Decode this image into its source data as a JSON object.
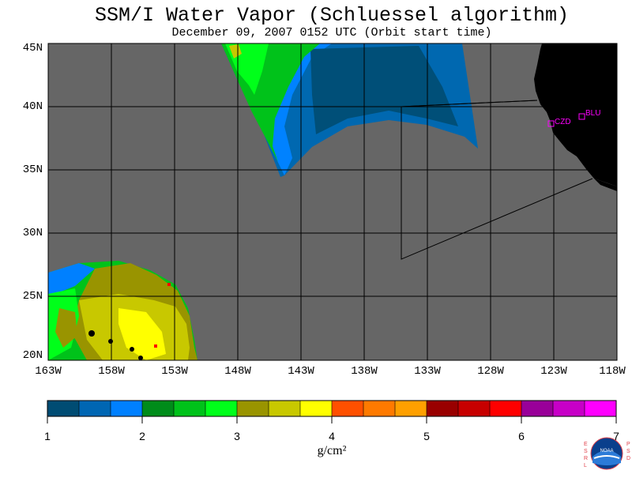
{
  "title": "SSM/I Water Vapor (Schluessel algorithm)",
  "subtitle": "December 09, 2007  0152 UTC  (Orbit start time)",
  "map": {
    "lat_labels": [
      "45N",
      "40N",
      "35N",
      "30N",
      "25N",
      "20N"
    ],
    "lon_labels": [
      "163W",
      "158W",
      "153W",
      "148W",
      "143W",
      "138W",
      "133W",
      "128W",
      "123W",
      "118W"
    ],
    "stations": [
      {
        "id": "czd",
        "label": "CZD",
        "color": "#ff00ff"
      },
      {
        "id": "blu",
        "label": "BLU",
        "color": "#ff00ff"
      }
    ],
    "colors": {
      "ocean_no_data": "#666666",
      "land": "#000000",
      "graticule": "#000000"
    }
  },
  "colorbar": {
    "ticks": [
      "1",
      "2",
      "3",
      "4",
      "5",
      "6",
      "7"
    ],
    "units": "g/cm²",
    "colors": [
      "#004c73",
      "#0066b3",
      "#0080ff",
      "#008c1a",
      "#00c21a",
      "#00ff1a",
      "#999400",
      "#c8c800",
      "#ffff00",
      "#ff5000",
      "#ff7a00",
      "#ffa000",
      "#990000",
      "#c70000",
      "#ff0000",
      "#990099",
      "#c700c7",
      "#ff00ff"
    ]
  },
  "logo": {
    "name": "noaa-logo",
    "left_text": "ESRL",
    "right_text": "PSD",
    "center_text": "NOAA"
  }
}
